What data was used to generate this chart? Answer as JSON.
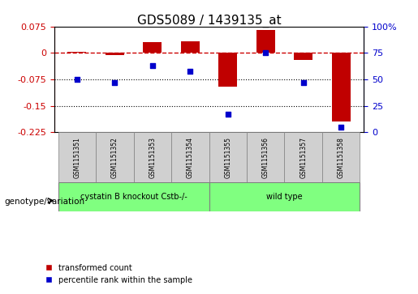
{
  "title": "GDS5089 / 1439135_at",
  "samples": [
    "GSM1151351",
    "GSM1151352",
    "GSM1151353",
    "GSM1151354",
    "GSM1151355",
    "GSM1151356",
    "GSM1151357",
    "GSM1151358"
  ],
  "transformed_count": [
    0.003,
    -0.005,
    0.03,
    0.033,
    -0.095,
    0.065,
    -0.02,
    -0.195
  ],
  "percentile_rank": [
    50,
    47,
    63,
    58,
    17,
    75,
    47,
    5
  ],
  "group1_label": "cystatin B knockout Cstb-/-",
  "group2_label": "wild type",
  "group1_count": 4,
  "group2_count": 4,
  "ylim_left": [
    -0.225,
    0.075
  ],
  "ylim_right": [
    0,
    100
  ],
  "yticks_left": [
    0.075,
    0,
    -0.075,
    -0.15,
    -0.225
  ],
  "yticks_right": [
    100,
    75,
    50,
    25,
    0
  ],
  "bar_color": "#c00000",
  "dot_color": "#0000cc",
  "group1_color": "#80ff80",
  "group2_color": "#80ff80",
  "hline_color": "#cc0000",
  "grid_color": "#000000",
  "legend_bar_label": "transformed count",
  "legend_dot_label": "percentile rank within the sample",
  "genotype_label": "genotype/variation"
}
